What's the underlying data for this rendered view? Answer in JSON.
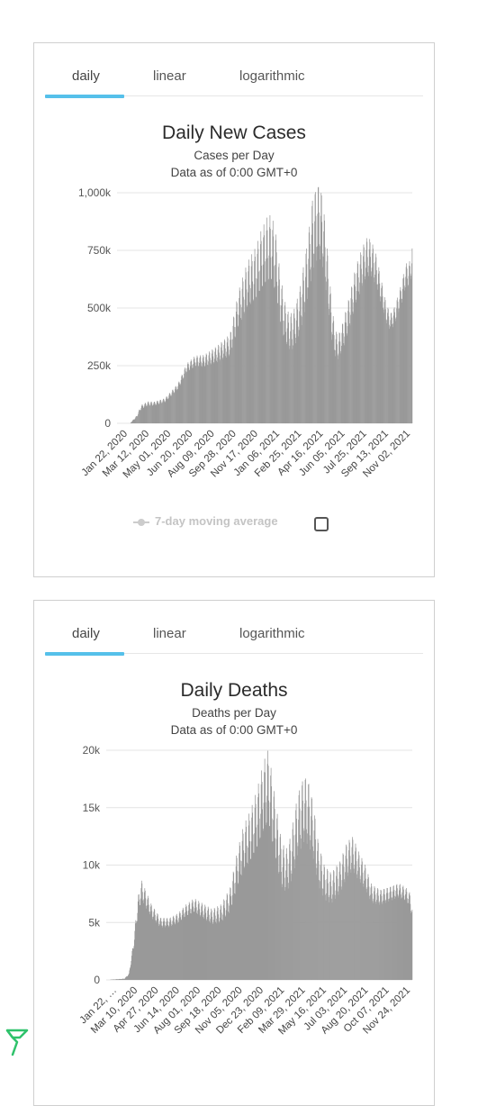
{
  "colors": {
    "bar": "#999999",
    "tab_accent": "#55c0ea",
    "logo": "#2fc26b"
  },
  "icons": {
    "logo": "green-flag-logo-icon",
    "legend": "line-dot-legend-icon"
  },
  "cases_panel": {
    "tabs": [
      {
        "label": "daily"
      },
      {
        "label": "linear"
      },
      {
        "label": "logarithmic"
      }
    ],
    "legend_label": "7-day moving average"
  },
  "deaths_panel": {
    "tabs": [
      {
        "label": "daily"
      },
      {
        "label": "linear"
      },
      {
        "label": "logarithmic"
      }
    ]
  },
  "chart_data": [
    {
      "type": "bar",
      "title": "Daily New Cases",
      "subtitle": "Cases per Day",
      "note": "Data as of 0:00 GMT+0",
      "ylim": [
        0,
        1000000
      ],
      "yticks": [
        "0",
        "250k",
        "500k",
        "750k",
        "1,000k"
      ],
      "xticks": [
        "Jan 22, 2020",
        "Mar 12, 2020",
        "May 01, 2020",
        "Jun 20, 2020",
        "Aug 09, 2020",
        "Sep 28, 2020",
        "Nov 17, 2020",
        "Jan 06, 2021",
        "Feb 25, 2021",
        "Apr 16, 2021",
        "Jun 05, 2021",
        "Jul 25, 2021",
        "Sep 13, 2021",
        "Nov 02, 2021"
      ],
      "grid": true,
      "anchors": [
        [
          0,
          0
        ],
        [
          30,
          1000
        ],
        [
          45,
          30000
        ],
        [
          55,
          70000
        ],
        [
          70,
          85000
        ],
        [
          85,
          85000
        ],
        [
          110,
          100000
        ],
        [
          140,
          160000
        ],
        [
          160,
          240000
        ],
        [
          180,
          270000
        ],
        [
          200,
          270000
        ],
        [
          230,
          300000
        ],
        [
          260,
          340000
        ],
        [
          280,
          500000
        ],
        [
          300,
          600000
        ],
        [
          320,
          650000
        ],
        [
          330,
          700000
        ],
        [
          345,
          750000
        ],
        [
          355,
          760000
        ],
        [
          365,
          700000
        ],
        [
          375,
          550000
        ],
        [
          385,
          450000
        ],
        [
          395,
          400000
        ],
        [
          405,
          400000
        ],
        [
          420,
          480000
        ],
        [
          440,
          680000
        ],
        [
          450,
          820000
        ],
        [
          460,
          870000
        ],
        [
          466,
          880000
        ],
        [
          474,
          830000
        ],
        [
          484,
          650000
        ],
        [
          494,
          450000
        ],
        [
          502,
          350000
        ],
        [
          510,
          330000
        ],
        [
          520,
          380000
        ],
        [
          535,
          480000
        ],
        [
          550,
          600000
        ],
        [
          565,
          680000
        ],
        [
          575,
          720000
        ],
        [
          585,
          720000
        ],
        [
          598,
          660000
        ],
        [
          610,
          560000
        ],
        [
          620,
          480000
        ],
        [
          630,
          440000
        ],
        [
          640,
          470000
        ],
        [
          655,
          560000
        ],
        [
          665,
          640000
        ],
        [
          675,
          650000
        ],
        [
          680,
          720000
        ]
      ]
    },
    {
      "type": "bar",
      "title": "Daily Deaths",
      "subtitle": "Deaths per Day",
      "note": "Data as of 0:00 GMT+0",
      "ylim": [
        0,
        20000
      ],
      "yticks": [
        "0",
        "5k",
        "10k",
        "15k",
        "20k"
      ],
      "xticks": [
        "Jan 22, …",
        "Mar 10, 2020",
        "Apr 27, 2020",
        "Jun 14, 2020",
        "Aug 01, 2020",
        "Sep 18, 2020",
        "Nov 05, 2020",
        "Dec 23, 2020",
        "Feb 09, 2021",
        "Mar 29, 2021",
        "May 16, 2021",
        "Jul 03, 2021",
        "Aug 20, 2021",
        "Oct 07, 2021",
        "Nov 24, 2021"
      ],
      "grid": true,
      "anchors": [
        [
          0,
          0
        ],
        [
          40,
          100
        ],
        [
          50,
          500
        ],
        [
          60,
          3000
        ],
        [
          70,
          6500
        ],
        [
          78,
          7800
        ],
        [
          88,
          7000
        ],
        [
          100,
          6000
        ],
        [
          120,
          5000
        ],
        [
          140,
          5000
        ],
        [
          160,
          5400
        ],
        [
          175,
          6000
        ],
        [
          195,
          6500
        ],
        [
          215,
          6000
        ],
        [
          235,
          5500
        ],
        [
          255,
          5800
        ],
        [
          275,
          7000
        ],
        [
          290,
          9500
        ],
        [
          305,
          11500
        ],
        [
          320,
          12500
        ],
        [
          335,
          14000
        ],
        [
          350,
          16000
        ],
        [
          360,
          16800
        ],
        [
          368,
          15000
        ],
        [
          378,
          12500
        ],
        [
          390,
          10000
        ],
        [
          400,
          9500
        ],
        [
          410,
          10500
        ],
        [
          425,
          13500
        ],
        [
          440,
          15000
        ],
        [
          450,
          14500
        ],
        [
          460,
          13000
        ],
        [
          472,
          10000
        ],
        [
          485,
          8500
        ],
        [
          500,
          8000
        ],
        [
          520,
          9000
        ],
        [
          535,
          10500
        ],
        [
          548,
          11000
        ],
        [
          560,
          10000
        ],
        [
          575,
          9000
        ],
        [
          590,
          7500
        ],
        [
          610,
          7200
        ],
        [
          630,
          7500
        ],
        [
          650,
          7800
        ],
        [
          665,
          7500
        ],
        [
          675,
          7000
        ],
        [
          680,
          5800
        ]
      ]
    }
  ]
}
